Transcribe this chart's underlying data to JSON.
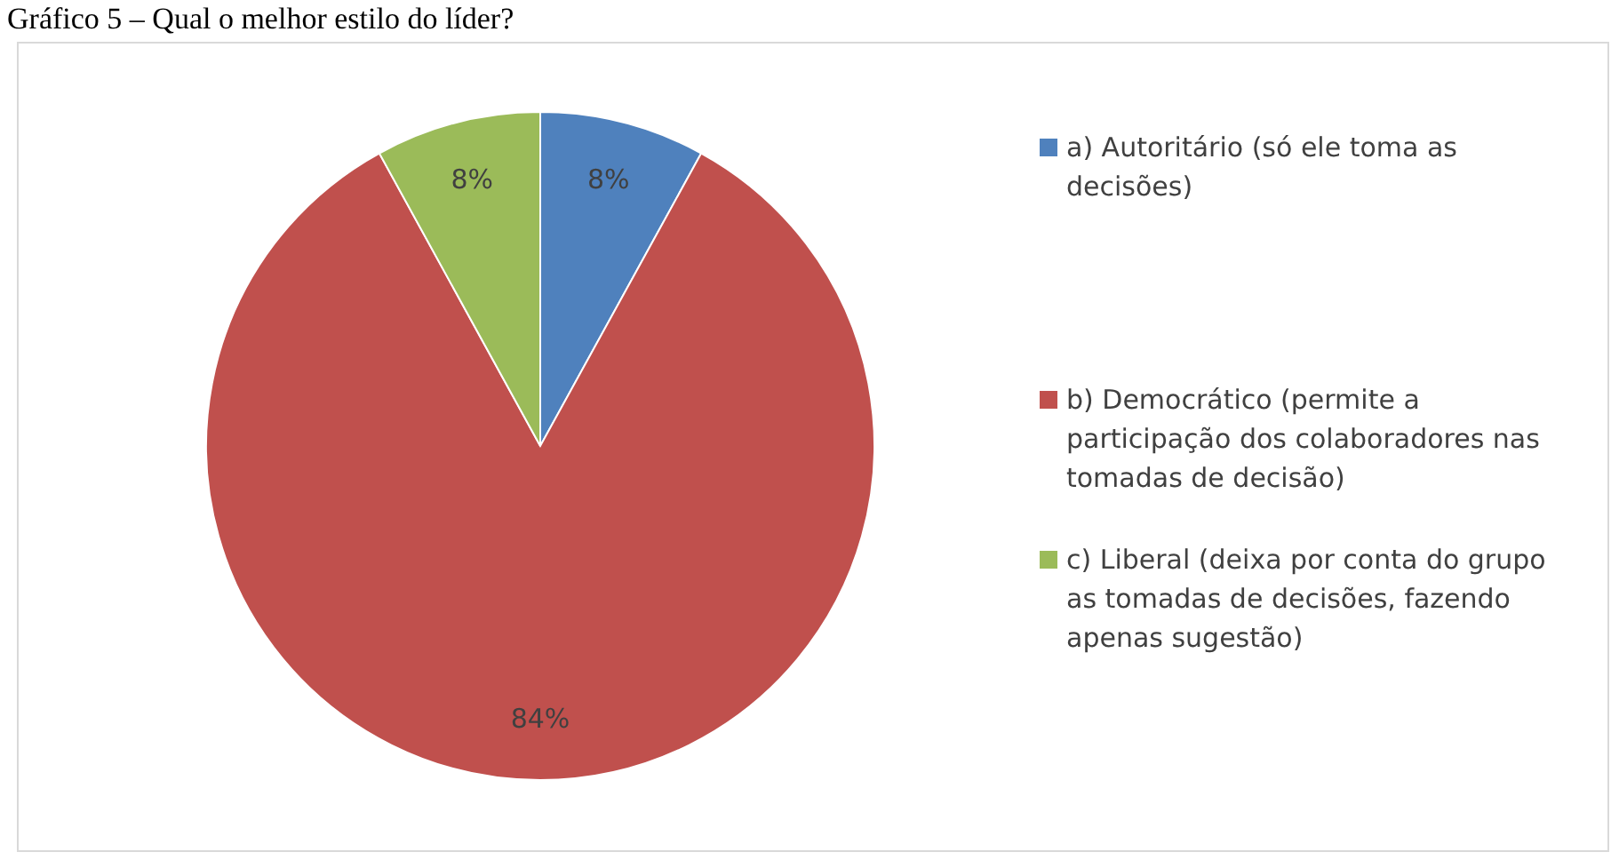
{
  "chart_data": {
    "type": "pie",
    "title": "Gráfico 5 – Qual o melhor estilo do líder?",
    "categories": [
      "a) Autoritário (só ele toma as decisões)",
      "b) Democrático (permite a participação dos colaboradores nas tomadas de decisão)",
      "c) Liberal (deixa por conta do grupo as tomadas de decisões, fazendo apenas sugestão)"
    ],
    "values": [
      8,
      84,
      8
    ],
    "colors": [
      "#4f81bd",
      "#c0504d",
      "#9bbb59"
    ],
    "value_labels": [
      "8%",
      "84%",
      "8%"
    ],
    "legend": "right"
  }
}
